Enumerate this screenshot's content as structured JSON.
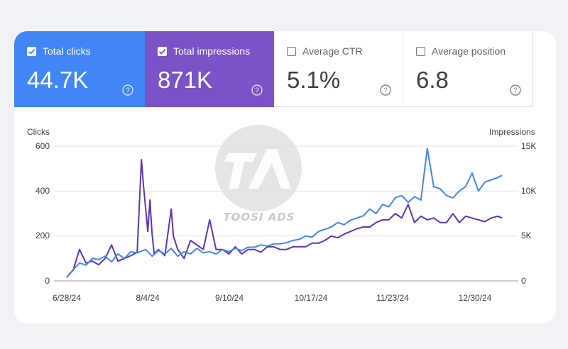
{
  "tiles": [
    {
      "label": "Total clicks",
      "value": "44.7K",
      "checked": true,
      "color": "#4285f4"
    },
    {
      "label": "Total impressions",
      "value": "871K",
      "checked": true,
      "color": "#7b53c6"
    },
    {
      "label": "Average CTR",
      "value": "5.1%",
      "checked": false
    },
    {
      "label": "Average position",
      "value": "6.8",
      "checked": false
    }
  ],
  "watermark": {
    "text": "TOOSI ADS",
    "logo_letters": "TA"
  },
  "chart_data": {
    "type": "line",
    "ylabel": "Clicks",
    "y2label": "Impressions",
    "ylim": [
      0,
      600
    ],
    "y2lim": [
      0,
      15000
    ],
    "y_ticks": [
      "0",
      "200",
      "400",
      "600"
    ],
    "y2_ticks": [
      "0",
      "5K",
      "10K",
      "15K"
    ],
    "x_ticks": [
      "6/28/24",
      "8/4/24",
      "9/10/24",
      "10/17/24",
      "11/23/24",
      "12/30/24"
    ],
    "x_range": [
      "2024-06-28",
      "2025-01-20"
    ],
    "grid": true,
    "series": [
      {
        "name": "Clicks",
        "axis": "left",
        "color": "#4285f4",
        "x": [
          0,
          3,
          6,
          9,
          12,
          15,
          18,
          21,
          24,
          27,
          30,
          33,
          37,
          40,
          43,
          46,
          49,
          52,
          55,
          58,
          61,
          64,
          67,
          70,
          73,
          76,
          79,
          82,
          85,
          88,
          91,
          94,
          97,
          100,
          103,
          106,
          109,
          112,
          115,
          118,
          121,
          124,
          127,
          130,
          133,
          136,
          139,
          142,
          145,
          148,
          151,
          154,
          157,
          160,
          163,
          166,
          169,
          172,
          175,
          178,
          181,
          184,
          187,
          190,
          193,
          196,
          199,
          202,
          204
        ],
        "values": [
          15,
          50,
          80,
          70,
          100,
          95,
          110,
          85,
          120,
          100,
          130,
          125,
          140,
          110,
          135,
          120,
          145,
          110,
          130,
          120,
          145,
          125,
          130,
          120,
          140,
          130,
          145,
          135,
          150,
          150,
          160,
          155,
          165,
          165,
          170,
          180,
          185,
          200,
          195,
          220,
          230,
          240,
          260,
          250,
          270,
          280,
          290,
          320,
          300,
          340,
          330,
          370,
          380,
          350,
          375,
          360,
          590,
          420,
          410,
          380,
          370,
          400,
          420,
          480,
          400,
          440,
          450,
          460,
          470
        ]
      },
      {
        "name": "Impressions",
        "axis": "right",
        "color": "#5e35b1",
        "x": [
          0,
          3,
          6,
          9,
          12,
          15,
          18,
          21,
          24,
          27,
          30,
          33,
          35,
          36,
          37,
          38,
          39,
          40,
          41,
          43,
          46,
          49,
          50,
          52,
          55,
          58,
          61,
          64,
          67,
          70,
          73,
          76,
          79,
          82,
          85,
          88,
          91,
          94,
          97,
          100,
          103,
          106,
          109,
          112,
          115,
          118,
          121,
          124,
          127,
          130,
          133,
          136,
          139,
          142,
          145,
          148,
          151,
          154,
          157,
          160,
          163,
          166,
          169,
          172,
          175,
          178,
          181,
          184,
          187,
          190,
          193,
          196,
          199,
          202,
          204
        ],
        "values": [
          400,
          1200,
          3500,
          2000,
          2200,
          1800,
          2500,
          4000,
          2200,
          2500,
          2800,
          3200,
          13500,
          10500,
          8000,
          5500,
          9000,
          5200,
          3000,
          3500,
          2800,
          8000,
          5000,
          3500,
          2500,
          4500,
          4000,
          3500,
          6800,
          3500,
          3500,
          3000,
          3800,
          3000,
          3500,
          3500,
          3200,
          3800,
          3800,
          3500,
          3500,
          3800,
          3800,
          3800,
          4200,
          4200,
          4500,
          5000,
          4800,
          5200,
          5500,
          5800,
          6000,
          6000,
          6500,
          6800,
          6800,
          7500,
          7000,
          8500,
          6500,
          7200,
          6800,
          7000,
          6500,
          6500,
          7500,
          6500,
          7200,
          7000,
          6800,
          6600,
          7000,
          7200,
          7000
        ]
      }
    ]
  }
}
